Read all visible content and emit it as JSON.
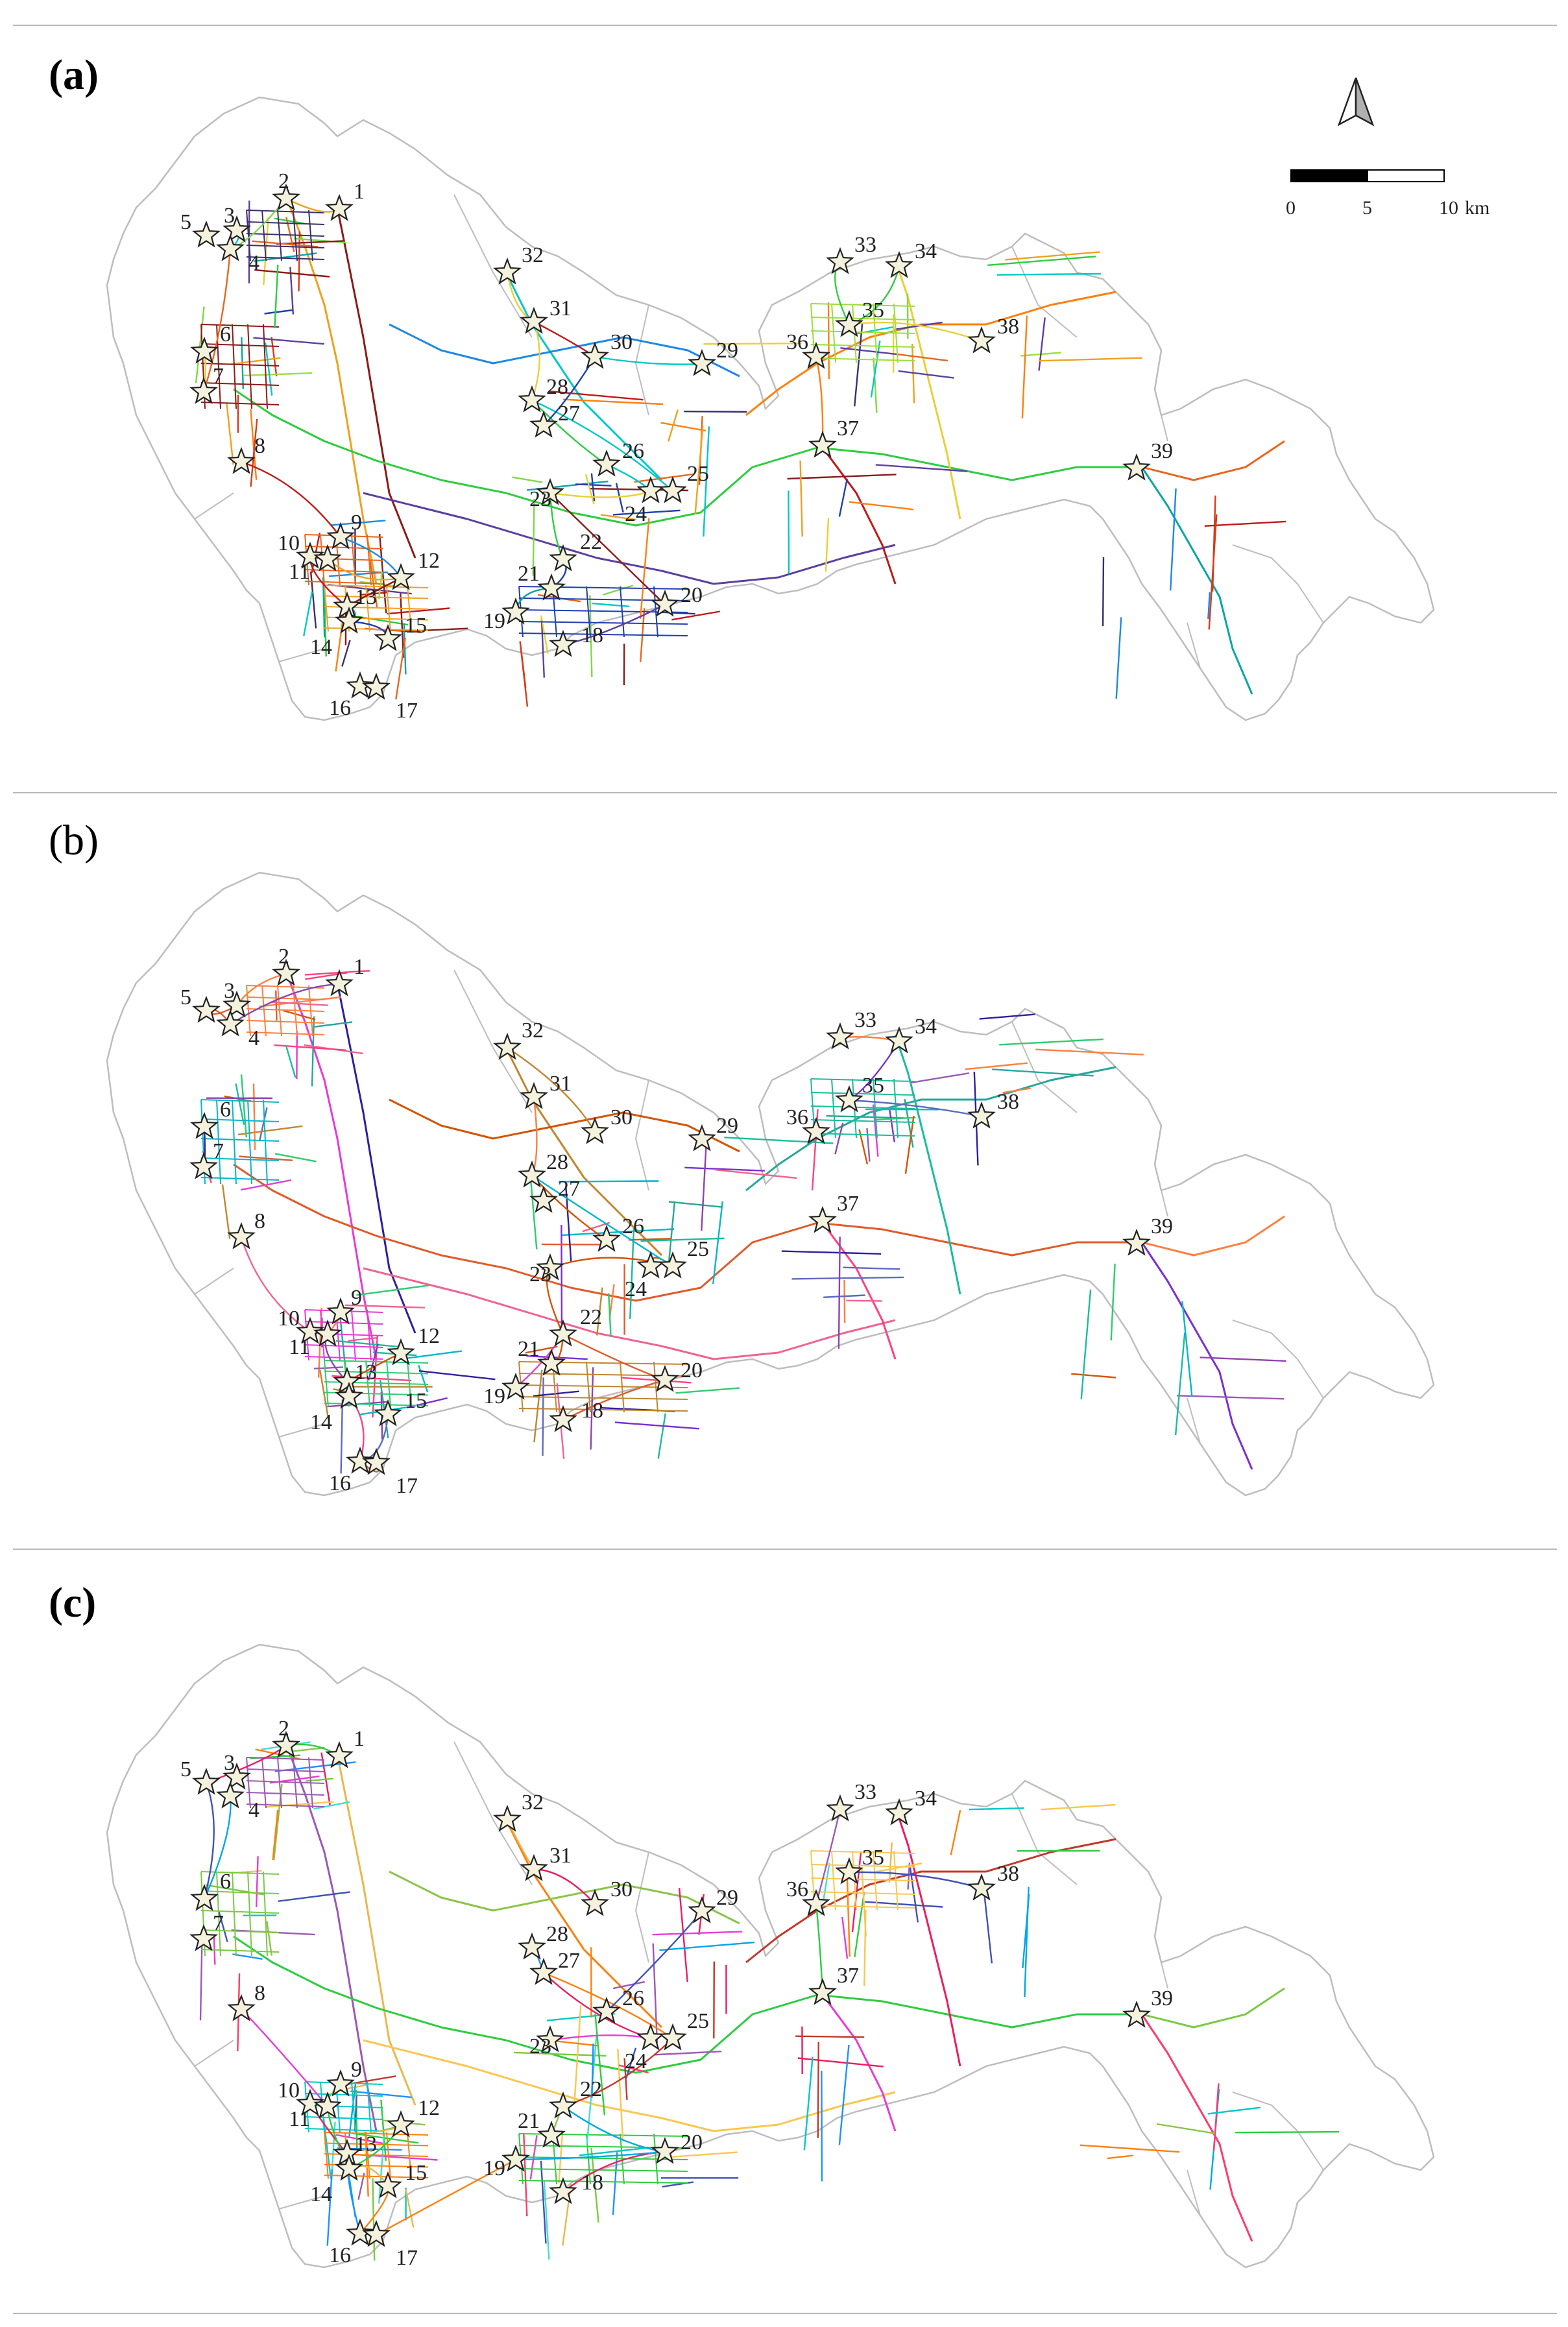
{
  "panels": [
    {
      "label": "(a)",
      "bold": true
    },
    {
      "label": "(b)",
      "bold": false
    },
    {
      "label": "(c)",
      "bold": true
    }
  ],
  "scale_bar": {
    "ticks": [
      "0",
      "5",
      "10"
    ],
    "unit": "km"
  },
  "north_arrow": "north-arrow-icon",
  "sites": [
    "1",
    "2",
    "3",
    "4",
    "5",
    "6",
    "7",
    "8",
    "9",
    "10",
    "11",
    "12",
    "13",
    "14",
    "15",
    "16",
    "17",
    "18",
    "19",
    "20",
    "21",
    "22",
    "23",
    "24",
    "25",
    "26",
    "27",
    "28",
    "29",
    "30",
    "31",
    "32",
    "33",
    "34",
    "35",
    "36",
    "37",
    "38",
    "39"
  ],
  "marker_icon": "star-outline-icon",
  "colors": {
    "boundary": "#bdbdbd",
    "rule": "#b8b8b8",
    "star_fill": "#f4f1dc",
    "star_stroke": "#222222"
  },
  "palettes": [
    [
      "#8b1a1a",
      "#3b2f6b",
      "#e8661d",
      "#f0a020",
      "#1f3fb0",
      "#00c8c8",
      "#2ecc40",
      "#9adf3a",
      "#e8d038",
      "#5c3f9e",
      "#d83a1a",
      "#1e88e5",
      "#ff7f0e",
      "#7fd84a",
      "#c01818",
      "#0aa5a5"
    ],
    [
      "#7b2fd0",
      "#2e1f9e",
      "#00b7c9",
      "#ff7f40",
      "#e83ad6",
      "#2ecc71",
      "#c0862f",
      "#e05a2a",
      "#9b59b6",
      "#1abc9c",
      "#f06292",
      "#5c6bc0",
      "#d35400",
      "#26a69a",
      "#8e44ad",
      "#ff4081"
    ],
    [
      "#e83ad6",
      "#ff3b6b",
      "#e8b84b",
      "#00a6e8",
      "#7ac943",
      "#9b59b6",
      "#00c8c8",
      "#ff7f0e",
      "#2ecc40",
      "#3f51b5",
      "#e91e63",
      "#f9c74f",
      "#1e90ff",
      "#8bc34a",
      "#c0392b",
      "#40e0d0"
    ]
  ]
}
